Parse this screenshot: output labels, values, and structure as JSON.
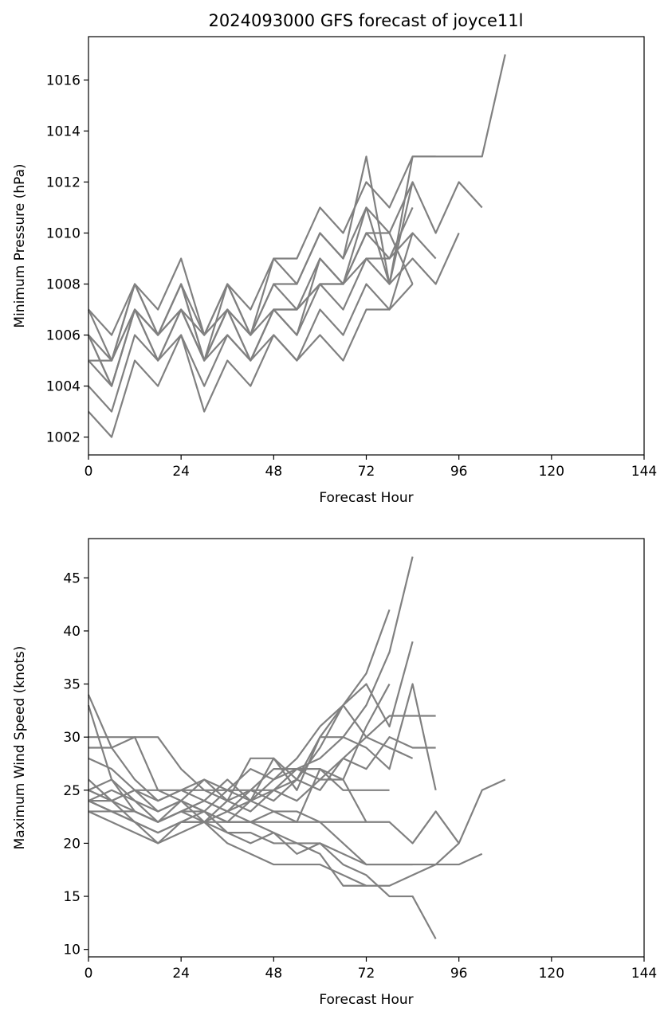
{
  "figure": {
    "title": "2024093000 GFS forecast of joyce11l",
    "line_color": "#808080"
  },
  "chart_data": [
    {
      "type": "line",
      "title": "2024093000 GFS forecast of joyce11l",
      "xlabel": "Forecast Hour",
      "ylabel": "Minimum Pressure (hPa)",
      "xlim": [
        0,
        144
      ],
      "ylim": [
        1001.3,
        1017.7
      ],
      "xticks": [
        0,
        24,
        48,
        72,
        96,
        120,
        144
      ],
      "xtick_labels": [
        "0",
        "24",
        "48",
        "72",
        "96",
        "120",
        "144"
      ],
      "yticks": [
        1002,
        1004,
        1006,
        1008,
        1010,
        1012,
        1014,
        1016
      ],
      "ytick_labels": [
        "1002",
        "1004",
        "1006",
        "1008",
        "1010",
        "1012",
        "1014",
        "1016"
      ],
      "grid": false,
      "series": [
        {
          "x": [
            0,
            6,
            12,
            18,
            24,
            30,
            36,
            42,
            48,
            54,
            60,
            66,
            72,
            78,
            84,
            90,
            96,
            102,
            108
          ],
          "y": [
            1007,
            1006,
            1008,
            1007,
            1009,
            1006,
            1008,
            1007,
            1009,
            1009,
            1011,
            1010,
            1012,
            1011,
            1013,
            1013,
            1013,
            1013,
            1017
          ]
        },
        {
          "x": [
            0,
            6,
            12,
            18,
            24,
            30,
            36,
            42,
            48,
            54,
            60,
            66,
            72,
            78,
            84,
            90,
            96,
            102
          ],
          "y": [
            1006,
            1005,
            1008,
            1006,
            1008,
            1006,
            1008,
            1006,
            1008,
            1008,
            1010,
            1009,
            1011,
            1010,
            1012,
            1010,
            1012,
            1011
          ]
        },
        {
          "x": [
            0,
            6,
            12,
            18,
            24,
            30,
            36,
            42,
            48,
            54,
            60,
            66,
            72,
            78,
            84,
            90
          ],
          "y": [
            1006,
            1004,
            1007,
            1006,
            1007,
            1005,
            1007,
            1006,
            1008,
            1007,
            1009,
            1008,
            1010,
            1009,
            1010,
            1009
          ]
        },
        {
          "x": [
            0,
            6,
            12,
            18,
            24,
            30,
            36,
            42,
            48,
            54,
            60,
            66,
            72,
            78,
            84
          ],
          "y": [
            1005,
            1005,
            1007,
            1006,
            1007,
            1006,
            1007,
            1006,
            1007,
            1007,
            1008,
            1008,
            1009,
            1009,
            1011
          ]
        },
        {
          "x": [
            0,
            6,
            12,
            18,
            24,
            30,
            36,
            42,
            48,
            54,
            60,
            66,
            72,
            78,
            84
          ],
          "y": [
            1005,
            1004,
            1007,
            1005,
            1007,
            1005,
            1006,
            1005,
            1006,
            1005,
            1007,
            1006,
            1008,
            1007,
            1008
          ]
        },
        {
          "x": [
            0,
            6,
            12,
            18,
            24,
            30,
            36,
            42,
            48,
            54,
            60,
            66,
            72,
            78,
            84,
            90,
            96
          ],
          "y": [
            1004,
            1003,
            1006,
            1005,
            1006,
            1004,
            1006,
            1005,
            1007,
            1006,
            1008,
            1007,
            1009,
            1008,
            1009,
            1008,
            1010
          ]
        },
        {
          "x": [
            0,
            6,
            12,
            18,
            24,
            30,
            36,
            42,
            48,
            54,
            60,
            66,
            72,
            78,
            84
          ],
          "y": [
            1003,
            1002,
            1005,
            1004,
            1006,
            1003,
            1005,
            1004,
            1006,
            1005,
            1006,
            1005,
            1007,
            1007,
            1010
          ]
        },
        {
          "x": [
            0,
            6,
            12,
            18,
            24,
            30,
            36,
            42,
            48,
            54,
            60,
            66,
            72,
            78,
            84,
            90
          ],
          "y": [
            1006,
            1004,
            1007,
            1006,
            1008,
            1005,
            1007,
            1005,
            1007,
            1006,
            1009,
            1008,
            1011,
            1008,
            1013,
            1013
          ]
        },
        {
          "x": [
            0,
            6,
            12,
            18,
            24,
            30,
            36,
            42,
            48,
            54,
            60,
            66,
            72,
            78,
            84
          ],
          "y": [
            1007,
            1005,
            1008,
            1006,
            1008,
            1005,
            1008,
            1006,
            1009,
            1008,
            1010,
            1009,
            1013,
            1008,
            1012
          ]
        },
        {
          "x": [
            0,
            6,
            12,
            18,
            24,
            30,
            36,
            42,
            48,
            54,
            60,
            66,
            72,
            78,
            84
          ],
          "y": [
            1005,
            1005,
            1007,
            1005,
            1007,
            1005,
            1007,
            1005,
            1007,
            1007,
            1008,
            1008,
            1010,
            1010,
            1008
          ]
        }
      ]
    },
    {
      "type": "line",
      "title": "",
      "xlabel": "Forecast Hour",
      "ylabel": "Maximum Wind Speed (knots)",
      "xlim": [
        0,
        144
      ],
      "ylim": [
        9.3,
        48.7
      ],
      "xticks": [
        0,
        24,
        48,
        72,
        96,
        120,
        144
      ],
      "xtick_labels": [
        "0",
        "24",
        "48",
        "72",
        "96",
        "120",
        "144"
      ],
      "yticks": [
        10,
        15,
        20,
        25,
        30,
        35,
        40,
        45
      ],
      "ytick_labels": [
        "10",
        "15",
        "20",
        "25",
        "30",
        "35",
        "40",
        "45"
      ],
      "grid": false,
      "series": [
        {
          "x": [
            0,
            6,
            12,
            18,
            24,
            30,
            36,
            42,
            48,
            54,
            60,
            66,
            72,
            78,
            84
          ],
          "y": [
            25,
            24,
            25,
            23,
            24,
            23,
            25,
            24,
            26,
            27,
            28,
            30,
            33,
            38,
            47
          ]
        },
        {
          "x": [
            0,
            6,
            12,
            18,
            24,
            30,
            36,
            42,
            48,
            54,
            60,
            66,
            72,
            78
          ],
          "y": [
            24,
            25,
            24,
            22,
            23,
            24,
            23,
            25,
            24,
            26,
            29,
            33,
            36,
            42
          ]
        },
        {
          "x": [
            0,
            6,
            12,
            18,
            24,
            30,
            36,
            42,
            48,
            54,
            60,
            66,
            72,
            78,
            84
          ],
          "y": [
            26,
            24,
            25,
            24,
            25,
            26,
            25,
            27,
            26,
            28,
            31,
            33,
            35,
            31,
            39
          ]
        },
        {
          "x": [
            0,
            6,
            12,
            18,
            24,
            30,
            36,
            42,
            48,
            54,
            60,
            66,
            72,
            78,
            84,
            90
          ],
          "y": [
            25,
            26,
            24,
            23,
            24,
            22,
            24,
            23,
            25,
            24,
            26,
            28,
            30,
            32,
            32,
            32
          ]
        },
        {
          "x": [
            0,
            6,
            12,
            18,
            24,
            30,
            36,
            42,
            48,
            54,
            60,
            66,
            72,
            78,
            84,
            90
          ],
          "y": [
            24,
            23,
            23,
            22,
            23,
            24,
            23,
            24,
            25,
            26,
            30,
            30,
            29,
            27,
            35,
            25
          ]
        },
        {
          "x": [
            0,
            6,
            12,
            18,
            24,
            30,
            36,
            42,
            48,
            54,
            60,
            66,
            72,
            78,
            84,
            90
          ],
          "y": [
            34,
            29,
            26,
            24,
            25,
            24,
            26,
            24,
            28,
            26,
            25,
            28,
            27,
            30,
            29,
            29
          ]
        },
        {
          "x": [
            0,
            6,
            12,
            18,
            24,
            30,
            36,
            42,
            48,
            54,
            60,
            66,
            72,
            78
          ],
          "y": [
            33,
            26,
            23,
            22,
            24,
            23,
            22,
            24,
            23,
            22,
            27,
            26,
            31,
            35
          ]
        },
        {
          "x": [
            0,
            6,
            12,
            18,
            24,
            30,
            36,
            42,
            48,
            54,
            60,
            66,
            72,
            78
          ],
          "y": [
            30,
            30,
            30,
            30,
            27,
            25,
            25,
            25,
            25,
            27,
            27,
            25,
            25,
            25
          ]
        },
        {
          "x": [
            0,
            6,
            12,
            18,
            24,
            30,
            36,
            42,
            48,
            54,
            60,
            66,
            72,
            78,
            84
          ],
          "y": [
            29,
            29,
            30,
            25,
            24,
            26,
            24,
            28,
            28,
            25,
            30,
            33,
            30,
            29,
            28
          ]
        },
        {
          "x": [
            0,
            6,
            12,
            18,
            24,
            30,
            36,
            42,
            48,
            54,
            60,
            66,
            72
          ],
          "y": [
            28,
            27,
            25,
            25,
            25,
            25,
            24,
            25,
            27,
            27,
            26,
            26,
            22
          ]
        },
        {
          "x": [
            0,
            6,
            12,
            18,
            24,
            30,
            36,
            42,
            48,
            54,
            60,
            66,
            72,
            78,
            84,
            90,
            96,
            102,
            108
          ],
          "y": [
            23,
            23,
            23,
            22,
            23,
            22,
            22,
            22,
            22,
            22,
            22,
            22,
            22,
            22,
            20,
            23,
            20,
            25,
            26
          ]
        },
        {
          "x": [
            0,
            6,
            12,
            18,
            24,
            30,
            36,
            42,
            48,
            54,
            60,
            66,
            72,
            78,
            84,
            90,
            96,
            102
          ],
          "y": [
            24,
            23,
            22,
            21,
            22,
            22,
            23,
            22,
            21,
            20,
            20,
            19,
            18,
            18,
            18,
            18,
            18,
            19
          ]
        },
        {
          "x": [
            0,
            6,
            12,
            18,
            24,
            30,
            36,
            42,
            48,
            54,
            60,
            66,
            72,
            78,
            84,
            90,
            96
          ],
          "y": [
            25,
            24,
            22,
            20,
            21,
            22,
            20,
            19,
            18,
            18,
            18,
            17,
            16,
            16,
            17,
            18,
            20
          ]
        },
        {
          "x": [
            0,
            6,
            12,
            18,
            24,
            30,
            36,
            42,
            48,
            54,
            60,
            66,
            72,
            78,
            84,
            90
          ],
          "y": [
            23,
            22,
            21,
            20,
            22,
            23,
            21,
            20,
            21,
            19,
            20,
            18,
            17,
            15,
            15,
            11
          ]
        },
        {
          "x": [
            0,
            6,
            12,
            18,
            24,
            30,
            36,
            42,
            48,
            54,
            60,
            66,
            72
          ],
          "y": [
            24,
            23,
            22,
            21,
            22,
            22,
            21,
            21,
            20,
            20,
            19,
            16,
            16
          ]
        },
        {
          "x": [
            0,
            6,
            12,
            18,
            24,
            30,
            36,
            42,
            48,
            54,
            60,
            66,
            72,
            78,
            84
          ],
          "y": [
            24,
            24,
            23,
            22,
            23,
            23,
            22,
            22,
            23,
            23,
            22,
            20,
            18,
            18,
            18
          ]
        }
      ]
    }
  ]
}
